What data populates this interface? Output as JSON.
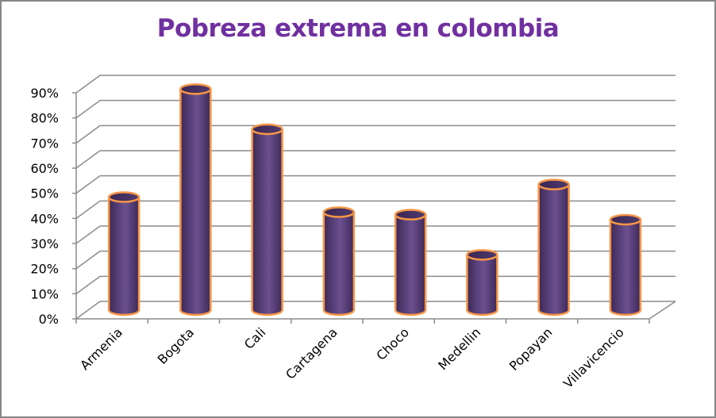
{
  "chart_data": {
    "type": "bar",
    "style": "3d-cylinder",
    "title": "Pobreza extrema en colombia",
    "xlabel": "",
    "ylabel": "",
    "categories": [
      "Armenia",
      "Bogota",
      "Cali",
      "Cartagena",
      "Choco",
      "Medellin",
      "Popayan",
      "Villavicencio"
    ],
    "values": [
      45,
      88,
      72,
      39,
      38,
      22,
      50,
      36
    ],
    "value_format": "percent",
    "ylim": [
      0,
      90
    ],
    "yticks": [
      "0%",
      "10%",
      "20%",
      "30%",
      "40%",
      "50%",
      "60%",
      "70%",
      "80%",
      "90%"
    ],
    "grid": true,
    "legend": null,
    "colors": {
      "bar_fill_dark": "#3d2958",
      "bar_fill_light": "#6b5090",
      "bar_outline": "#F79646",
      "title": "#7030A0",
      "grid": "#8c8c8c",
      "border": "#868686"
    }
  }
}
